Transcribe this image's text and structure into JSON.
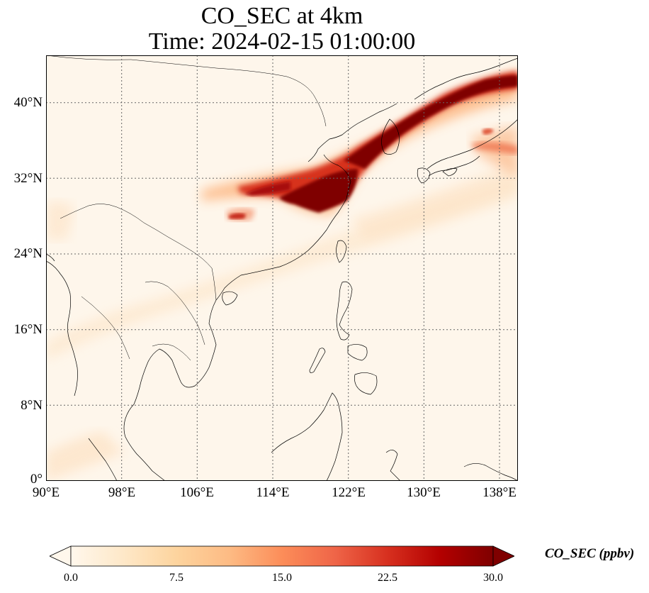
{
  "title": {
    "line1": "CO_SEC at 4km",
    "line2": "Time: 2024-02-15 01:00:00"
  },
  "map": {
    "lon_range": [
      90,
      139
    ],
    "lat_range": [
      0,
      45
    ],
    "lat_ticks": [
      {
        "value": 0,
        "label": "0°"
      },
      {
        "value": 8,
        "label": "8°N"
      },
      {
        "value": 16,
        "label": "16°N"
      },
      {
        "value": 24,
        "label": "24°N"
      },
      {
        "value": 32,
        "label": "32°N"
      },
      {
        "value": 40,
        "label": "40°N"
      }
    ],
    "lon_ticks": [
      {
        "value": 90,
        "label": "90°E"
      },
      {
        "value": 98,
        "label": "98°E"
      },
      {
        "value": 106,
        "label": "106°E"
      },
      {
        "value": 114,
        "label": "114°E"
      },
      {
        "value": 122,
        "label": "122°E"
      },
      {
        "value": 130,
        "label": "130°E"
      },
      {
        "value": 138,
        "label": "138°E"
      }
    ],
    "gridlines": true,
    "background_color": "#fef6eb",
    "plume_color_high": "#7f0000",
    "coastline_color": "#000000"
  },
  "colorbar": {
    "label": "CO_SEC (ppbv)",
    "ticks": [
      {
        "value": 0.0,
        "label": "0.0"
      },
      {
        "value": 7.5,
        "label": "7.5"
      },
      {
        "value": 15.0,
        "label": "15.0"
      },
      {
        "value": 22.5,
        "label": "22.5"
      },
      {
        "value": 30.0,
        "label": "30.0"
      }
    ],
    "range": [
      0,
      30
    ],
    "extend": "both",
    "colormap": [
      "#fff7ec",
      "#fee8c8",
      "#fdd49e",
      "#fdbb84",
      "#fc8d59",
      "#ef6548",
      "#d7301f",
      "#b30000",
      "#7f0000"
    ]
  }
}
